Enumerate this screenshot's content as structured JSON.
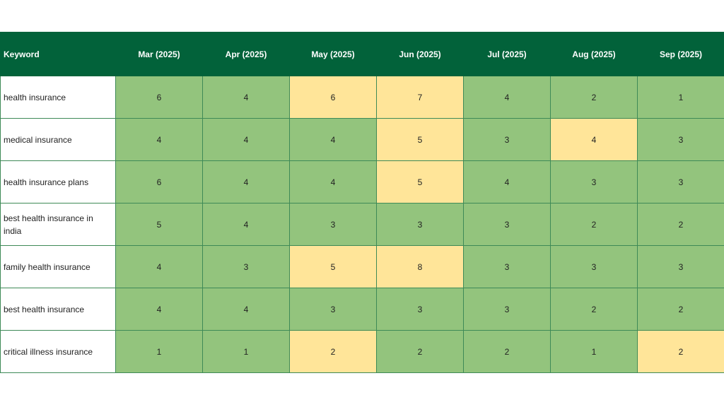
{
  "table": {
    "header": [
      "Keyword",
      "Mar (2025)",
      "Apr (2025)",
      "May (2025)",
      "Jun (2025)",
      "Jul (2025)",
      "Aug (2025)",
      "Sep (2025)"
    ],
    "rows": [
      {
        "keyword": "health insurance",
        "values": [
          6,
          4,
          6,
          7,
          4,
          2,
          1
        ],
        "colors": [
          "#93c47d",
          "#93c47d",
          "#ffe599",
          "#ffe599",
          "#93c47d",
          "#93c47d",
          "#93c47d"
        ]
      },
      {
        "keyword": "medical insurance",
        "values": [
          4,
          4,
          4,
          5,
          3,
          4,
          3
        ],
        "colors": [
          "#93c47d",
          "#93c47d",
          "#93c47d",
          "#ffe599",
          "#93c47d",
          "#ffe599",
          "#93c47d"
        ]
      },
      {
        "keyword": "health insurance plans",
        "values": [
          6,
          4,
          4,
          5,
          4,
          3,
          3
        ],
        "colors": [
          "#93c47d",
          "#93c47d",
          "#93c47d",
          "#ffe599",
          "#93c47d",
          "#93c47d",
          "#93c47d"
        ]
      },
      {
        "keyword": "best health insurance in india",
        "values": [
          5,
          4,
          3,
          3,
          3,
          2,
          2
        ],
        "colors": [
          "#93c47d",
          "#93c47d",
          "#93c47d",
          "#93c47d",
          "#93c47d",
          "#93c47d",
          "#93c47d"
        ]
      },
      {
        "keyword": "family health insurance",
        "values": [
          4,
          3,
          5,
          8,
          3,
          3,
          3
        ],
        "colors": [
          "#93c47d",
          "#93c47d",
          "#ffe599",
          "#ffe599",
          "#93c47d",
          "#93c47d",
          "#93c47d"
        ]
      },
      {
        "keyword": "best health insurance",
        "values": [
          4,
          4,
          3,
          3,
          3,
          2,
          2
        ],
        "colors": [
          "#93c47d",
          "#93c47d",
          "#93c47d",
          "#93c47d",
          "#93c47d",
          "#93c47d",
          "#93c47d"
        ]
      },
      {
        "keyword": "critical illness insurance",
        "values": [
          1,
          1,
          2,
          2,
          2,
          1,
          2
        ],
        "colors": [
          "#93c47d",
          "#93c47d",
          "#ffe599",
          "#93c47d",
          "#93c47d",
          "#93c47d",
          "#ffe599"
        ]
      }
    ]
  }
}
